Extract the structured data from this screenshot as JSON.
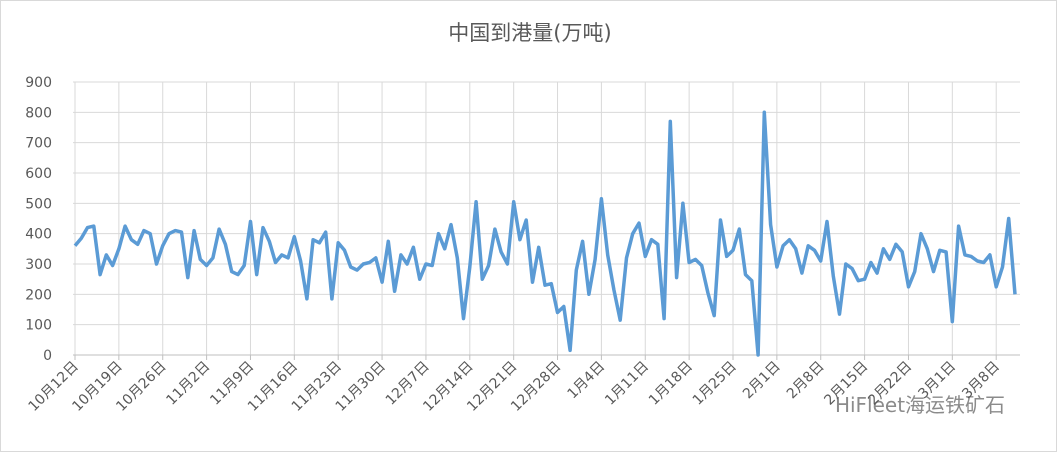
{
  "chart_data": {
    "type": "line",
    "title": "中国到港量(万吨)",
    "categories": [
      "10月12日",
      null,
      null,
      null,
      null,
      null,
      null,
      "10月19日",
      null,
      null,
      null,
      null,
      null,
      null,
      "10月26日",
      null,
      null,
      null,
      null,
      null,
      null,
      "11月2日",
      null,
      null,
      null,
      null,
      null,
      null,
      "11月9日",
      null,
      null,
      null,
      null,
      null,
      null,
      "11月16日",
      null,
      null,
      null,
      null,
      null,
      null,
      "11月23日",
      null,
      null,
      null,
      null,
      null,
      null,
      "11月30日",
      null,
      null,
      null,
      null,
      null,
      null,
      "12月7日",
      null,
      null,
      null,
      null,
      null,
      null,
      "12月14日",
      null,
      null,
      null,
      null,
      null,
      null,
      "12月21日",
      null,
      null,
      null,
      null,
      null,
      null,
      "12月28日",
      null,
      null,
      null,
      null,
      null,
      null,
      "1月4日",
      null,
      null,
      null,
      null,
      null,
      null,
      "1月11日",
      null,
      null,
      null,
      null,
      null,
      null,
      "1月18日",
      null,
      null,
      null,
      null,
      null,
      null,
      "1月25日",
      null,
      null,
      null,
      null,
      null,
      null,
      "2月1日",
      null,
      null,
      null,
      null,
      null,
      null,
      "2月8日",
      null,
      null,
      null,
      null,
      null,
      null,
      "2月15日",
      null,
      null,
      null,
      null,
      null,
      null,
      "2月22日",
      null,
      null,
      null,
      null,
      null,
      null,
      "3月1日",
      null,
      null,
      null,
      null,
      null,
      null,
      "3月8日",
      null,
      null,
      null
    ],
    "values": [
      360,
      385,
      420,
      425,
      265,
      330,
      295,
      350,
      425,
      380,
      365,
      410,
      400,
      300,
      360,
      400,
      410,
      405,
      255,
      410,
      315,
      295,
      320,
      415,
      365,
      275,
      265,
      295,
      440,
      265,
      420,
      375,
      305,
      330,
      320,
      390,
      310,
      185,
      380,
      370,
      405,
      185,
      370,
      345,
      290,
      280,
      300,
      305,
      320,
      240,
      375,
      210,
      330,
      300,
      355,
      250,
      300,
      295,
      400,
      350,
      430,
      320,
      120,
      290,
      505,
      250,
      295,
      415,
      340,
      300,
      505,
      380,
      445,
      240,
      355,
      230,
      235,
      140,
      160,
      15,
      280,
      375,
      200,
      315,
      515,
      330,
      215,
      115,
      320,
      400,
      435,
      325,
      380,
      365,
      120,
      770,
      255,
      500,
      305,
      315,
      295,
      205,
      130,
      445,
      325,
      345,
      415,
      265,
      245,
      0,
      800,
      430,
      290,
      360,
      380,
      350,
      270,
      360,
      345,
      310,
      440,
      260,
      135,
      300,
      285,
      245,
      250,
      305,
      270,
      350,
      315,
      365,
      340,
      225,
      275,
      400,
      350,
      275,
      345,
      340,
      110,
      425,
      330,
      325,
      310,
      305,
      330,
      225,
      290,
      450,
      200
    ],
    "color": "#5b9bd5",
    "ylim": [
      0,
      900
    ],
    "yticks": [
      0,
      100,
      200,
      300,
      400,
      500,
      600,
      700,
      800,
      900
    ],
    "grid": true,
    "watermark": "HiFleet海运铁矿石"
  }
}
